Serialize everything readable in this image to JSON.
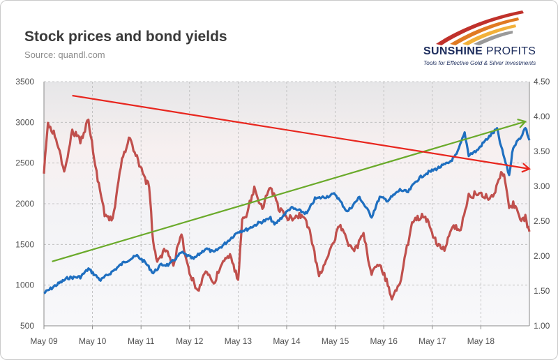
{
  "header": {
    "title": "Stock prices and bond yields",
    "source": "Source: quandl.com"
  },
  "logo": {
    "brand": "SUNSHINE PROFITS",
    "brand_first": "SUNSHINE",
    "brand_second": "PROFITS",
    "tagline": "Tools for Effective Gold & Silver Investments"
  },
  "colors": {
    "stock_series": "#1f6fc0",
    "yield_series": "#c0504d",
    "trend_up": "#6aaa2a",
    "trend_down": "#e8261e",
    "brand_navy": "#1c2c5c"
  },
  "chart_data": {
    "type": "line",
    "title": "Stock prices and bond yields",
    "subtitle": "Source: quandl.com",
    "xlabel": "",
    "ylabel": "",
    "grid": true,
    "legend": "none",
    "x_ticks": [
      "May 09",
      "May 10",
      "May 11",
      "May 12",
      "May 13",
      "May 14",
      "May 15",
      "May 16",
      "May 17",
      "May 18"
    ],
    "y_left": {
      "ticks": [
        "500",
        "1000",
        "1500",
        "2000",
        "2500",
        "3000",
        "3500"
      ],
      "ylim": [
        500,
        3500
      ]
    },
    "y_right": {
      "ticks": [
        "1.00",
        "1.50",
        "2.00",
        "2.50",
        "3.00",
        "3.50",
        "4.00",
        "4.50"
      ],
      "ylim": [
        1.0,
        4.5
      ]
    },
    "series": [
      {
        "axis": "left",
        "color": "#1f6fc0",
        "points": [
          [
            "2009-05",
            900
          ],
          [
            "2009-08",
            1000
          ],
          [
            "2009-11",
            1090
          ],
          [
            "2010-02",
            1100
          ],
          [
            "2010-04",
            1200
          ],
          [
            "2010-07",
            1060
          ],
          [
            "2010-10",
            1170
          ],
          [
            "2011-01",
            1290
          ],
          [
            "2011-04",
            1360
          ],
          [
            "2011-06",
            1280
          ],
          [
            "2011-08",
            1150
          ],
          [
            "2011-10",
            1250
          ],
          [
            "2011-12",
            1250
          ],
          [
            "2012-03",
            1400
          ],
          [
            "2012-06",
            1320
          ],
          [
            "2012-09",
            1450
          ],
          [
            "2012-11",
            1400
          ],
          [
            "2013-02",
            1520
          ],
          [
            "2013-05",
            1660
          ],
          [
            "2013-07",
            1680
          ],
          [
            "2013-10",
            1760
          ],
          [
            "2014-01",
            1820
          ],
          [
            "2014-02",
            1740
          ],
          [
            "2014-06",
            1950
          ],
          [
            "2014-10",
            1880
          ],
          [
            "2014-12",
            2060
          ],
          [
            "2015-03",
            2090
          ],
          [
            "2015-05",
            2120
          ],
          [
            "2015-08",
            1900
          ],
          [
            "2015-11",
            2080
          ],
          [
            "2016-02",
            1840
          ],
          [
            "2016-04",
            2080
          ],
          [
            "2016-06",
            2040
          ],
          [
            "2016-09",
            2170
          ],
          [
            "2016-11",
            2140
          ],
          [
            "2017-01",
            2280
          ],
          [
            "2017-03",
            2360
          ],
          [
            "2017-06",
            2430
          ],
          [
            "2017-09",
            2500
          ],
          [
            "2017-11",
            2600
          ],
          [
            "2018-01",
            2870
          ],
          [
            "2018-02",
            2600
          ],
          [
            "2018-04",
            2650
          ],
          [
            "2018-06",
            2770
          ],
          [
            "2018-09",
            2920
          ],
          [
            "2018-10",
            2700
          ],
          [
            "2018-12",
            2350
          ],
          [
            "2019-01",
            2700
          ],
          [
            "2019-03",
            2830
          ],
          [
            "2019-04",
            2940
          ],
          [
            "2019-05",
            2780
          ]
        ]
      },
      {
        "axis": "right",
        "color": "#c0504d",
        "points": [
          [
            "2009-05",
            3.2
          ],
          [
            "2009-06",
            3.9
          ],
          [
            "2009-08",
            3.7
          ],
          [
            "2009-10",
            3.2
          ],
          [
            "2009-12",
            3.8
          ],
          [
            "2010-02",
            3.65
          ],
          [
            "2010-04",
            3.95
          ],
          [
            "2010-06",
            3.2
          ],
          [
            "2010-08",
            2.6
          ],
          [
            "2010-10",
            2.5
          ],
          [
            "2010-12",
            3.3
          ],
          [
            "2011-02",
            3.7
          ],
          [
            "2011-04",
            3.4
          ],
          [
            "2011-06",
            3.1
          ],
          [
            "2011-07",
            3.0
          ],
          [
            "2011-08",
            2.2
          ],
          [
            "2011-09",
            1.9
          ],
          [
            "2011-11",
            2.1
          ],
          [
            "2012-01",
            1.9
          ],
          [
            "2012-03",
            2.3
          ],
          [
            "2012-05",
            1.75
          ],
          [
            "2012-07",
            1.5
          ],
          [
            "2012-09",
            1.8
          ],
          [
            "2012-11",
            1.6
          ],
          [
            "2013-01",
            1.9
          ],
          [
            "2013-03",
            2.0
          ],
          [
            "2013-05",
            1.65
          ],
          [
            "2013-06",
            2.5
          ],
          [
            "2013-07",
            2.6
          ],
          [
            "2013-09",
            2.95
          ],
          [
            "2013-11",
            2.7
          ],
          [
            "2014-01",
            3.0
          ],
          [
            "2014-03",
            2.7
          ],
          [
            "2014-05",
            2.55
          ],
          [
            "2014-07",
            2.55
          ],
          [
            "2014-09",
            2.6
          ],
          [
            "2014-11",
            2.3
          ],
          [
            "2015-01",
            1.7
          ],
          [
            "2015-03",
            2.0
          ],
          [
            "2015-05",
            2.25
          ],
          [
            "2015-06",
            2.45
          ],
          [
            "2015-08",
            2.2
          ],
          [
            "2015-10",
            2.1
          ],
          [
            "2015-12",
            2.3
          ],
          [
            "2016-02",
            1.75
          ],
          [
            "2016-04",
            1.9
          ],
          [
            "2016-06",
            1.6
          ],
          [
            "2016-07",
            1.4
          ],
          [
            "2016-09",
            1.6
          ],
          [
            "2016-11",
            2.2
          ],
          [
            "2016-12",
            2.5
          ],
          [
            "2017-03",
            2.6
          ],
          [
            "2017-06",
            2.2
          ],
          [
            "2017-08",
            2.1
          ],
          [
            "2017-10",
            2.4
          ],
          [
            "2017-12",
            2.4
          ],
          [
            "2018-02",
            2.85
          ],
          [
            "2018-04",
            2.9
          ],
          [
            "2018-06",
            2.85
          ],
          [
            "2018-08",
            2.85
          ],
          [
            "2018-10",
            3.2
          ],
          [
            "2018-11",
            3.1
          ],
          [
            "2018-12",
            2.7
          ],
          [
            "2019-01",
            2.75
          ],
          [
            "2019-03",
            2.5
          ],
          [
            "2019-04",
            2.55
          ],
          [
            "2019-05",
            2.35
          ]
        ]
      }
    ],
    "annotations": [
      {
        "kind": "arrow",
        "color": "#6aaa2a",
        "axis": "left",
        "from": [
          "2009-07",
          1290
        ],
        "to": [
          "2019-04",
          3010
        ]
      },
      {
        "kind": "arrow",
        "color": "#e8261e",
        "axis": "right",
        "from": [
          "2009-12",
          4.3
        ],
        "to": [
          "2019-05",
          3.25
        ]
      }
    ]
  }
}
